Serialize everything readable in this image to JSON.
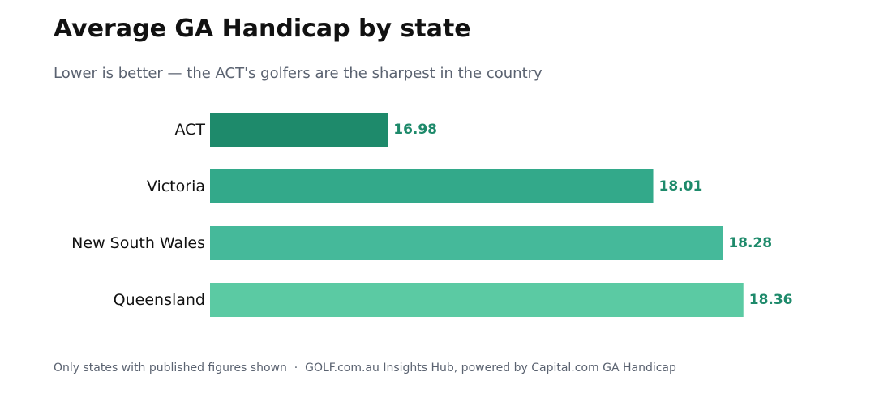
{
  "header": {
    "title": "Average GA Handicap by state",
    "subtitle": "Lower is better — the ACT's golfers are the sharpest in the country"
  },
  "footer": {
    "note": "Only states with published figures shown",
    "separator": "·",
    "source": "GOLF.com.au Insights Hub, powered by Capital.com GA Handicap"
  },
  "colors": {
    "value_label": "#1e8a6b",
    "bars": [
      "#1e8a6b",
      "#33a98a",
      "#45b99a",
      "#5bcaa3"
    ]
  },
  "chart_data": {
    "type": "bar",
    "orientation": "horizontal",
    "title": "Average GA Handicap by state",
    "subtitle": "Lower is better — the ACT's golfers are the sharpest in the country",
    "categories": [
      "ACT",
      "Victoria",
      "New South Wales",
      "Queensland"
    ],
    "values": [
      16.98,
      18.01,
      18.28,
      18.36
    ],
    "value_labels": [
      "16.98",
      "18.01",
      "18.28",
      "18.36"
    ],
    "xlim": [
      16.29,
      18.6
    ],
    "xlabel": "",
    "ylabel": "",
    "grid": false,
    "legend": "none"
  }
}
